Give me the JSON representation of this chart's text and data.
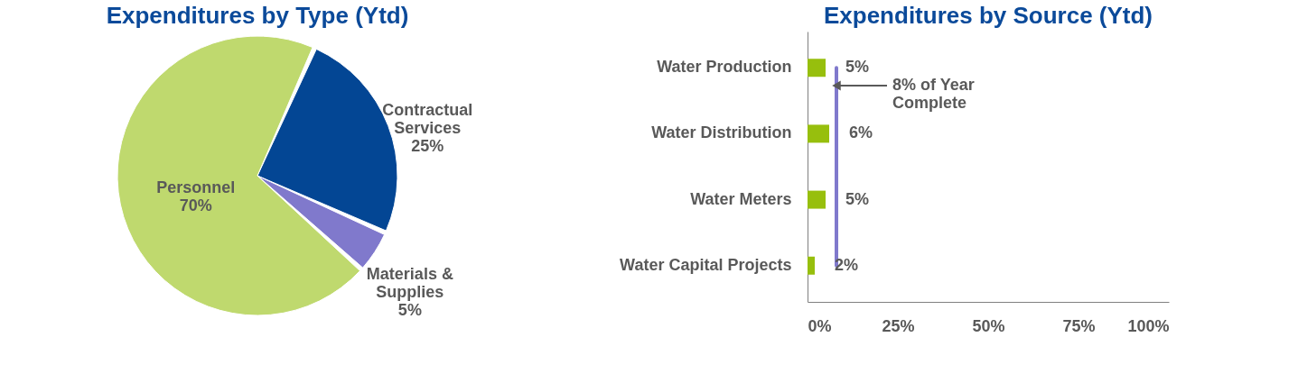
{
  "chart_data": [
    {
      "type": "pie",
      "title": "Expenditures by Type (Ytd)",
      "categories": [
        "Contractual Services",
        "Materials & Supplies",
        "Personnel"
      ],
      "values": [
        25,
        5,
        70
      ],
      "colors": [
        "#034694",
        "#8079cc",
        "#bfd96e"
      ],
      "value_labels": [
        "25%",
        "5%",
        "70%"
      ],
      "legend": false
    },
    {
      "type": "bar",
      "orientation": "horizontal",
      "title": "Expenditures by Source (Ytd)",
      "categories": [
        "Water Production",
        "Water Distribution",
        "Water Meters",
        "Water Capital Projects"
      ],
      "values": [
        5,
        6,
        5,
        2
      ],
      "color": "#97bf0d",
      "value_labels": [
        "5%",
        "6%",
        "5%",
        "2%"
      ],
      "xlim": [
        0,
        100
      ],
      "xticks": [
        {
          "value": 0,
          "label": "0%"
        },
        {
          "value": 25,
          "label": "25%"
        },
        {
          "value": 50,
          "label": "50%"
        },
        {
          "value": 75,
          "label": "75%"
        },
        {
          "value": 100,
          "label": "100%"
        }
      ],
      "ref_lines": [
        {
          "axis": "x",
          "value": 8,
          "label": "8% of Year Complete",
          "color": "#8079cc"
        }
      ],
      "grid": false,
      "legend": false
    }
  ]
}
